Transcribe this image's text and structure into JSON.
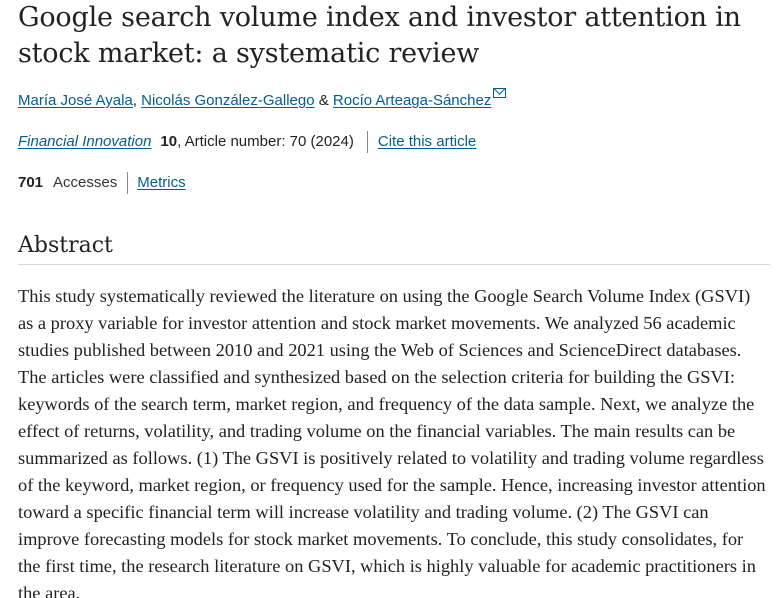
{
  "article": {
    "title": "Google search volume index and investor attention in stock market: a systematic review",
    "authors": [
      {
        "name": "María José Ayala",
        "separator": ", "
      },
      {
        "name": "Nicolás González-Gallego",
        "separator": " & "
      },
      {
        "name": "Rocío Arteaga-Sánchez",
        "separator": ""
      }
    ],
    "icons": {
      "email": "envelope-icon"
    },
    "citation": {
      "journal": "Financial Innovation",
      "volume": "10",
      "details": ", Article number: 70 (2024)",
      "cite_link": "Cite this article"
    },
    "metrics": {
      "accesses_count": "701",
      "accesses_label": "Accesses",
      "metrics_link": "Metrics"
    },
    "abstract": {
      "heading": "Abstract",
      "text": "This study systematically reviewed the literature on using the Google Search Volume Index (GSVI) as a proxy variable for investor attention and stock market movements. We analyzed 56 academic studies published between 2010 and 2021 using the Web of Sciences and ScienceDirect databases. The articles were classified and synthesized based on the selection criteria for building the GSVI: keywords of the search term, market region, and frequency of the data sample. Next, we analyze the effect of returns, volatility, and trading volume on the financial variables. The main results can be summarized as follows. (1) The GSVI is positively related to volatility and trading volume regardless of the keyword, market region, or frequency used for the sample. Hence, increasing investor attention toward a specific financial term will increase volatility and trading volume. (2) The GSVI can improve forecasting models for stock market movements. To conclude, this study consolidates, for the first time, the research literature on GSVI, which is highly valuable for academic practitioners in the area."
    },
    "colors": {
      "link": "#025e8d",
      "text": "#222222",
      "divider": "#d5d5d5"
    }
  }
}
